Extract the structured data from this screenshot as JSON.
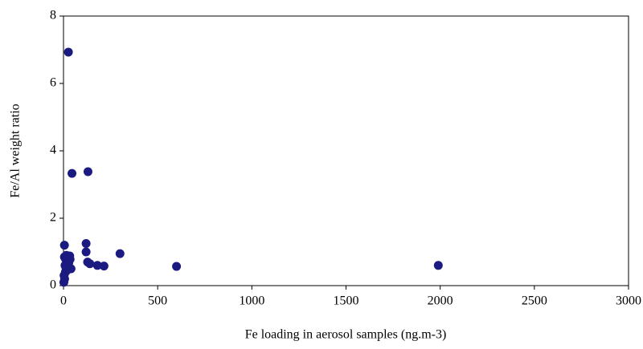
{
  "chart_data": {
    "type": "scatter",
    "x_label": "Fe loading in aerosol samples (ng.m-3)",
    "y_label": "Fe/Al weight ratio",
    "color": "#1a1a80",
    "x": [
      26,
      45,
      130,
      5,
      120,
      120,
      300,
      128,
      140,
      180,
      215,
      600,
      1990,
      5,
      10,
      15,
      20,
      25,
      30,
      35,
      40,
      8,
      12,
      18,
      3,
      6,
      22,
      28,
      33,
      10,
      2,
      15
    ],
    "values": [
      6.93,
      3.33,
      3.38,
      1.2,
      1.25,
      1.0,
      0.95,
      0.7,
      0.65,
      0.6,
      0.58,
      0.57,
      0.6,
      0.85,
      0.8,
      0.75,
      0.7,
      0.65,
      0.82,
      0.78,
      0.5,
      0.6,
      0.55,
      0.45,
      0.3,
      0.2,
      0.72,
      0.68,
      0.88,
      0.4,
      0.1,
      0.9
    ],
    "xlim": [
      0,
      3000
    ],
    "ylim": [
      0,
      8
    ],
    "xticks": [
      0,
      500,
      1000,
      1500,
      2000,
      2500,
      3000
    ],
    "yticks": [
      0,
      2,
      4,
      6,
      8
    ]
  }
}
